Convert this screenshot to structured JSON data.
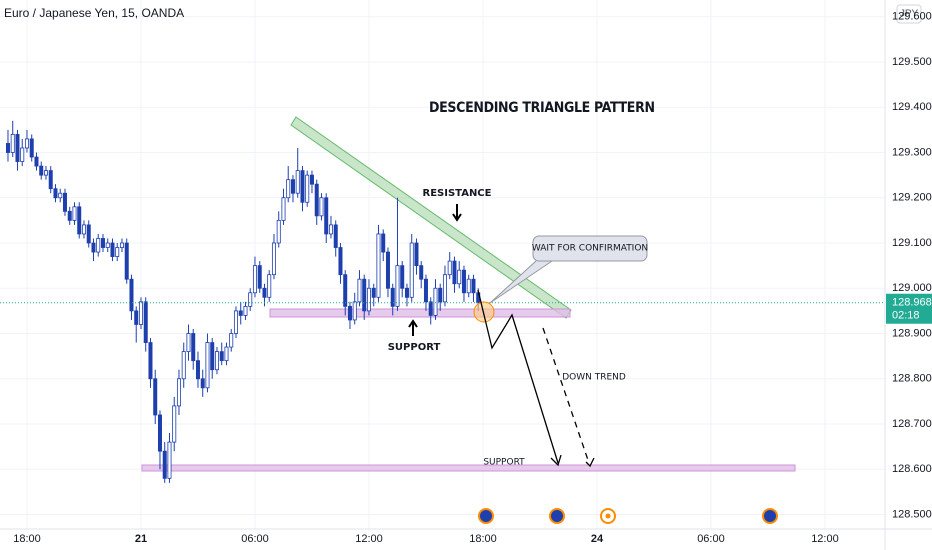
{
  "chart_data": {
    "type": "candlestick",
    "title": "Euro / Japanese Yen, 15, OANDA",
    "currency": "JPY",
    "annotations": {
      "pattern": "DESCENDING TRIANGLE PATTERN",
      "resistance": "RESISTANCE",
      "support_upper": "SUPPORT",
      "confirmation": "WAIT FOR CONFIRMATION",
      "trend": "DOWN TREND",
      "support_lower": "SUPPORT"
    },
    "up_color": "#ffffff",
    "down_color": "#1e3fae",
    "outline_color": "#1e3fae",
    "grid": true,
    "last_price": 128.968,
    "countdown": "02:18",
    "last_price_color": "#22ab94",
    "xlim": [
      -1.42,
      45.16
    ],
    "xticks": [
      {
        "value": 0,
        "label": "18:00"
      },
      {
        "value": 6,
        "label": "21"
      },
      {
        "value": 12,
        "label": "06:00"
      },
      {
        "value": 18,
        "label": "12:00"
      },
      {
        "value": 24,
        "label": "18:00"
      },
      {
        "value": 30,
        "label": "24"
      },
      {
        "value": 36,
        "label": "06:00"
      },
      {
        "value": 42,
        "label": "12:00"
      }
    ],
    "ylim": [
      128.468,
      129.637
    ],
    "yticks": [
      {
        "value": 128.5,
        "label": "128.500"
      },
      {
        "value": 128.6,
        "label": "128.600"
      },
      {
        "value": 128.7,
        "label": "128.700"
      },
      {
        "value": 128.8,
        "label": "128.800"
      },
      {
        "value": 128.9,
        "label": "128.900"
      },
      {
        "value": 129.0,
        "label": "129.000"
      },
      {
        "value": 129.1,
        "label": "129.100"
      },
      {
        "value": 129.2,
        "label": "129.200"
      },
      {
        "value": 129.3,
        "label": "129.300"
      },
      {
        "value": 129.4,
        "label": "129.400"
      },
      {
        "value": 129.5,
        "label": "129.500"
      },
      {
        "value": 129.6,
        "label": "129.600"
      }
    ],
    "candles": [
      [
        -1,
        129.32,
        129.35,
        129.28,
        129.3
      ],
      [
        -0.75,
        129.3,
        129.37,
        129.29,
        129.34
      ],
      [
        -0.5,
        129.34,
        129.35,
        129.26,
        129.28
      ],
      [
        -0.25,
        129.28,
        129.33,
        129.27,
        129.31
      ],
      [
        0,
        129.31,
        129.35,
        129.3,
        129.33
      ],
      [
        0.25,
        129.33,
        129.34,
        129.28,
        129.29
      ],
      [
        0.5,
        129.29,
        129.3,
        129.26,
        129.27
      ],
      [
        0.75,
        129.27,
        129.28,
        129.24,
        129.25
      ],
      [
        1,
        129.25,
        129.27,
        129.24,
        129.26
      ],
      [
        1.25,
        129.26,
        129.27,
        129.21,
        129.22
      ],
      [
        1.5,
        129.22,
        129.23,
        129.19,
        129.2
      ],
      [
        1.75,
        129.2,
        129.22,
        129.19,
        129.21
      ],
      [
        2,
        129.21,
        129.22,
        129.16,
        129.17
      ],
      [
        2.25,
        129.17,
        129.18,
        129.14,
        129.15
      ],
      [
        2.5,
        129.15,
        129.19,
        129.14,
        129.18
      ],
      [
        2.75,
        129.18,
        129.19,
        129.11,
        129.12
      ],
      [
        3,
        129.12,
        129.15,
        129.11,
        129.14
      ],
      [
        3.25,
        129.14,
        129.15,
        129.09,
        129.1
      ],
      [
        3.5,
        129.1,
        129.11,
        129.06,
        129.08
      ],
      [
        3.75,
        129.08,
        129.12,
        129.07,
        129.11
      ],
      [
        4,
        129.11,
        129.12,
        129.08,
        129.09
      ],
      [
        4.25,
        129.09,
        129.11,
        129.08,
        129.1
      ],
      [
        4.5,
        129.1,
        129.11,
        129.06,
        129.07
      ],
      [
        4.75,
        129.07,
        129.1,
        129.06,
        129.09
      ],
      [
        5,
        129.09,
        129.11,
        129.08,
        129.1
      ],
      [
        5.25,
        129.1,
        129.11,
        129.01,
        129.02
      ],
      [
        5.5,
        129.02,
        129.03,
        128.93,
        128.95
      ],
      [
        5.75,
        128.95,
        128.96,
        128.88,
        128.92
      ],
      [
        6,
        128.92,
        128.98,
        128.91,
        128.97
      ],
      [
        6.25,
        128.97,
        128.98,
        128.86,
        128.88
      ],
      [
        6.5,
        128.88,
        128.89,
        128.78,
        128.8
      ],
      [
        6.75,
        128.8,
        128.82,
        128.7,
        128.72
      ],
      [
        7,
        128.72,
        128.73,
        128.6,
        128.64
      ],
      [
        7.25,
        128.64,
        128.66,
        128.57,
        128.58
      ],
      [
        7.5,
        128.58,
        128.68,
        128.57,
        128.66
      ],
      [
        7.75,
        128.66,
        128.76,
        128.64,
        128.74
      ],
      [
        8,
        128.74,
        128.82,
        128.72,
        128.8
      ],
      [
        8.25,
        128.8,
        128.88,
        128.78,
        128.86
      ],
      [
        8.5,
        128.86,
        128.92,
        128.84,
        128.9
      ],
      [
        8.75,
        128.9,
        128.91,
        128.82,
        128.84
      ],
      [
        9,
        128.84,
        128.86,
        128.78,
        128.8
      ],
      [
        9.25,
        128.8,
        128.82,
        128.76,
        128.78
      ],
      [
        9.5,
        128.78,
        128.9,
        128.77,
        128.88
      ],
      [
        9.75,
        128.88,
        128.89,
        128.8,
        128.82
      ],
      [
        10,
        128.82,
        128.87,
        128.81,
        128.86
      ],
      [
        10.25,
        128.86,
        128.88,
        128.83,
        128.84
      ],
      [
        10.5,
        128.84,
        128.88,
        128.83,
        128.87
      ],
      [
        10.75,
        128.87,
        128.91,
        128.86,
        128.9
      ],
      [
        11,
        128.9,
        128.96,
        128.89,
        128.95
      ],
      [
        11.25,
        128.95,
        128.97,
        128.92,
        128.94
      ],
      [
        11.5,
        128.94,
        128.97,
        128.93,
        128.96
      ],
      [
        11.75,
        128.96,
        129.0,
        128.95,
        128.99
      ],
      [
        12,
        128.99,
        129.07,
        128.98,
        129.05
      ],
      [
        12.25,
        129.05,
        129.06,
        128.99,
        129.0
      ],
      [
        12.5,
        129.0,
        129.01,
        128.96,
        128.98
      ],
      [
        12.75,
        128.98,
        129.04,
        128.97,
        129.03
      ],
      [
        13,
        129.03,
        129.12,
        129.02,
        129.1
      ],
      [
        13.25,
        129.1,
        129.17,
        129.09,
        129.15
      ],
      [
        13.5,
        129.15,
        129.22,
        129.14,
        129.2
      ],
      [
        13.75,
        129.2,
        129.27,
        129.19,
        129.24
      ],
      [
        14,
        129.24,
        129.25,
        129.19,
        129.21
      ],
      [
        14.25,
        129.21,
        129.31,
        129.2,
        129.26
      ],
      [
        14.5,
        129.26,
        129.27,
        129.17,
        129.19
      ],
      [
        14.75,
        129.19,
        129.26,
        129.18,
        129.25
      ],
      [
        15,
        129.25,
        129.26,
        129.21,
        129.23
      ],
      [
        15.25,
        129.23,
        129.24,
        129.14,
        129.16
      ],
      [
        15.5,
        129.16,
        129.21,
        129.15,
        129.2
      ],
      [
        15.75,
        129.2,
        129.21,
        129.1,
        129.12
      ],
      [
        16,
        129.12,
        129.16,
        129.11,
        129.14
      ],
      [
        16.25,
        129.14,
        129.15,
        129.07,
        129.09
      ],
      [
        16.5,
        129.09,
        129.1,
        129.01,
        129.03
      ],
      [
        16.75,
        129.03,
        129.04,
        128.94,
        128.96
      ],
      [
        17,
        128.96,
        128.97,
        128.91,
        128.93
      ],
      [
        17.25,
        128.93,
        128.99,
        128.92,
        128.97
      ],
      [
        17.5,
        128.97,
        129.04,
        128.96,
        129.02
      ],
      [
        17.75,
        129.02,
        129.03,
        128.93,
        128.95
      ],
      [
        18,
        128.95,
        129.02,
        128.94,
        129.0
      ],
      [
        18.25,
        129.0,
        129.01,
        128.96,
        128.98
      ],
      [
        18.5,
        128.98,
        129.14,
        128.97,
        129.12
      ],
      [
        18.75,
        129.12,
        129.13,
        129.06,
        129.08
      ],
      [
        19,
        129.08,
        129.09,
        128.98,
        129.0
      ],
      [
        19.25,
        129.0,
        129.01,
        128.94,
        128.96
      ],
      [
        19.5,
        128.96,
        129.2,
        128.95,
        129.05
      ],
      [
        19.75,
        129.05,
        129.06,
        128.98,
        129.0
      ],
      [
        20,
        129.0,
        129.01,
        128.96,
        128.98
      ],
      [
        20.25,
        128.98,
        129.12,
        128.97,
        129.1
      ],
      [
        20.5,
        129.1,
        129.11,
        129.03,
        129.05
      ],
      [
        20.75,
        129.05,
        129.06,
        129.0,
        129.02
      ],
      [
        21,
        129.02,
        129.03,
        128.95,
        128.97
      ],
      [
        21.25,
        128.97,
        128.98,
        128.92,
        128.94
      ],
      [
        21.5,
        128.94,
        129.02,
        128.93,
        129.0
      ],
      [
        21.75,
        129.0,
        129.01,
        128.95,
        128.97
      ],
      [
        22,
        128.97,
        129.05,
        128.96,
        129.03
      ],
      [
        22.25,
        129.03,
        129.08,
        129.02,
        129.06
      ],
      [
        22.5,
        129.06,
        129.07,
        128.99,
        129.01
      ],
      [
        22.75,
        129.01,
        129.06,
        129.0,
        129.04
      ],
      [
        23,
        129.04,
        129.05,
        128.97,
        128.99
      ],
      [
        23.25,
        128.99,
        129.03,
        128.98,
        129.02
      ],
      [
        23.5,
        129.02,
        129.03,
        128.97,
        128.99
      ],
      [
        23.75,
        128.99,
        129.0,
        128.95,
        128.968
      ]
    ]
  }
}
